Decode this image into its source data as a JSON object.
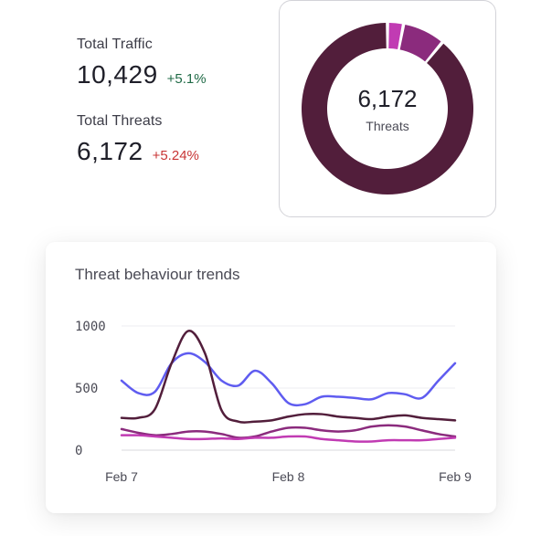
{
  "stats": {
    "traffic": {
      "label": "Total Traffic",
      "value": "10,429",
      "delta": "+5.1%"
    },
    "threats": {
      "label": "Total Threats",
      "value": "6,172",
      "delta": "+5.24%"
    }
  },
  "colors": {
    "delta_up": "#1f6a46",
    "delta_down": "#c83535",
    "dark_plum": "#521e3b",
    "purple": "#8b2b7d",
    "magenta": "#c13bb3",
    "blue": "#5f5cf0"
  },
  "donut": {
    "center_value": "6,172",
    "center_label": "Threats",
    "segments": [
      {
        "value": 0.03,
        "color": "#c13bb3"
      },
      {
        "value": 0.08,
        "color": "#8b2b7d"
      },
      {
        "value": 0.89,
        "color": "#521e3b"
      }
    ]
  },
  "chart_data": {
    "type": "line",
    "title": "Threat behaviour trends",
    "xlabel": "",
    "ylabel": "",
    "x_tick_labels": [
      "Feb 7",
      "Feb 8",
      "Feb 9"
    ],
    "y_tick_labels": [
      "1000",
      "500",
      "0"
    ],
    "y_ticks": [
      1000,
      500,
      0
    ],
    "ylim": [
      0,
      1000
    ],
    "x": [
      0,
      0.1,
      0.2,
      0.3,
      0.4,
      0.5,
      0.6,
      0.7,
      0.8,
      0.9,
      1.0,
      1.1,
      1.2,
      1.3,
      1.4,
      1.5,
      1.6,
      1.7,
      1.8,
      1.9,
      2.0
    ],
    "xlim": [
      0,
      2
    ],
    "grid": true,
    "series": [
      {
        "color": "#5f5cf0",
        "values": [
          560,
          460,
          470,
          700,
          780,
          710,
          560,
          520,
          640,
          540,
          380,
          370,
          430,
          430,
          420,
          410,
          460,
          450,
          420,
          560,
          700
        ]
      },
      {
        "color": "#521e3b",
        "values": [
          260,
          260,
          330,
          700,
          960,
          780,
          320,
          230,
          230,
          240,
          270,
          290,
          290,
          270,
          260,
          250,
          270,
          280,
          260,
          250,
          240
        ]
      },
      {
        "color": "#8b2b7d",
        "values": [
          170,
          140,
          120,
          130,
          150,
          150,
          130,
          100,
          110,
          150,
          180,
          180,
          160,
          150,
          160,
          190,
          200,
          190,
          160,
          130,
          110
        ]
      },
      {
        "color": "#c13bb3",
        "values": [
          120,
          120,
          110,
          100,
          90,
          90,
          95,
          90,
          100,
          100,
          110,
          110,
          90,
          80,
          70,
          70,
          80,
          80,
          80,
          90,
          100
        ]
      }
    ]
  }
}
